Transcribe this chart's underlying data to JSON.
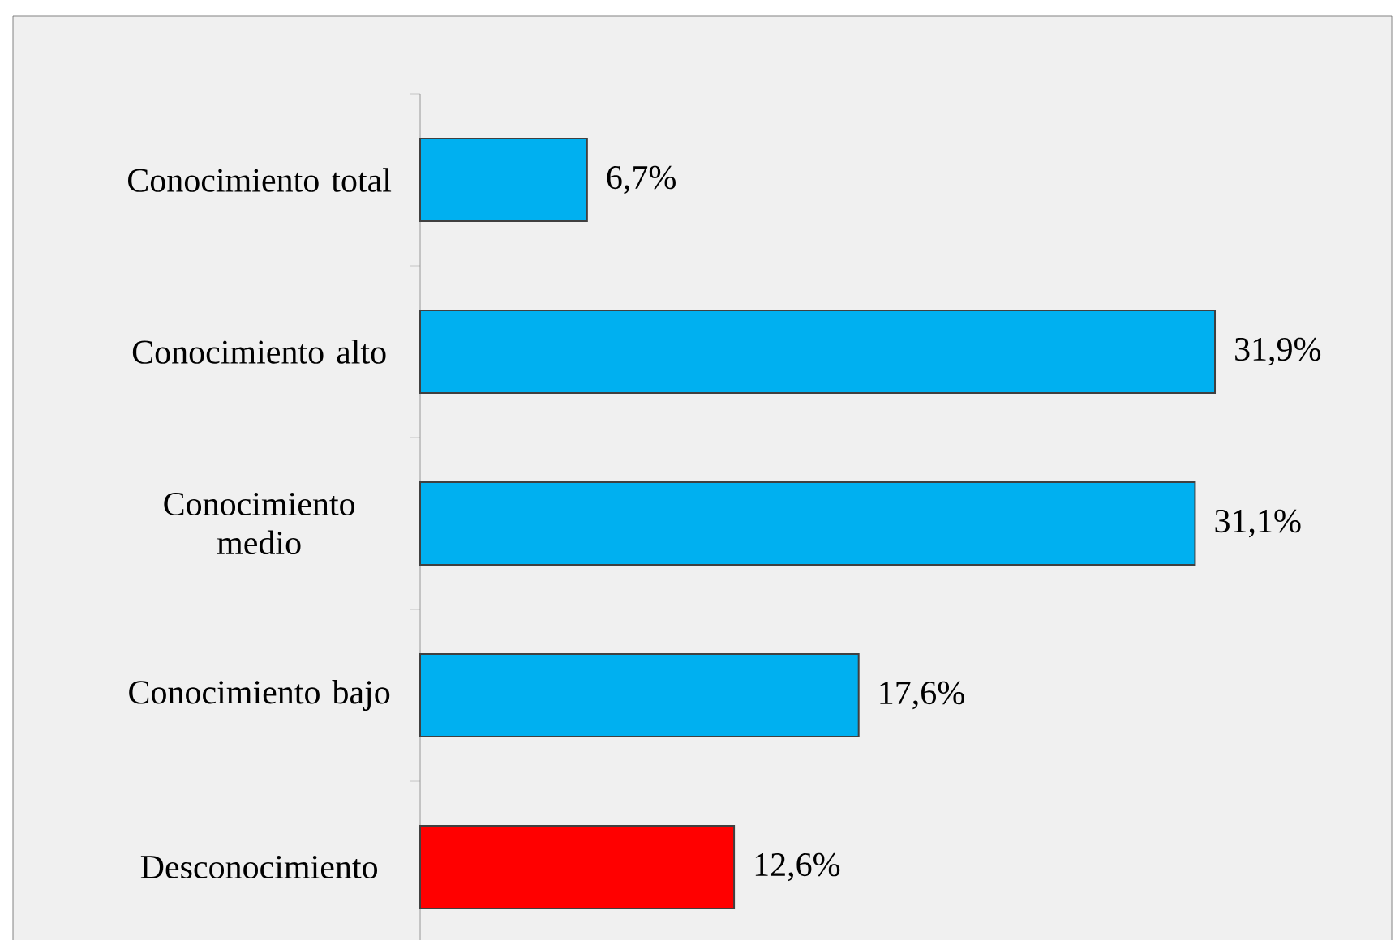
{
  "chart_data": {
    "type": "bar",
    "orientation": "horizontal",
    "categories": [
      "Conocimiento total",
      "Conocimiento alto",
      "Conocimiento medio",
      "Conocimiento bajo",
      "Desconocimiento"
    ],
    "values": [
      6.7,
      31.9,
      31.1,
      17.6,
      12.6
    ],
    "colors": [
      "#00b0f0",
      "#00b0f0",
      "#00b0f0",
      "#00b0f0",
      "#ff0000"
    ],
    "value_labels": [
      "6,7%",
      "31,9%",
      "31,1%",
      "17,6%",
      "12,6%"
    ]
  }
}
